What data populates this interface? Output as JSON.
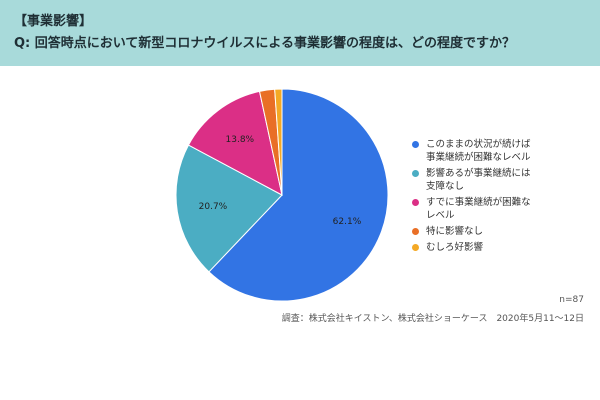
{
  "header": {
    "tag": "【事業影響】",
    "question": "Q: 回答時点において新型コロナウイルスによる事業影響の程度は、どの程度ですか？"
  },
  "chart_data": {
    "type": "pie",
    "title": "",
    "start_angle_deg": 0,
    "direction": "clockwise",
    "slices": [
      {
        "label": "このままの状況が続けば\n事業継続が困難なレベル",
        "value": 62.1,
        "display": "62.1%",
        "color": "#3274e4"
      },
      {
        "label": "影響あるが事業継続には\n支障なし",
        "value": 20.7,
        "display": "20.7%",
        "color": "#4badc3"
      },
      {
        "label": "すでに事業継続が困難な\nレベル",
        "value": 13.8,
        "display": "13.8%",
        "color": "#db2f86"
      },
      {
        "label": "特に影響なし",
        "value": 2.3,
        "display": "",
        "color": "#e96f26"
      },
      {
        "label": "むしろ好影響",
        "value": 1.1,
        "display": "",
        "color": "#f4a925"
      }
    ],
    "legend_position": "right"
  },
  "notes": {
    "n": "n=87",
    "source": "調査：株式会社キイストン、株式会社ショーケース　2020年5月11〜12日"
  }
}
